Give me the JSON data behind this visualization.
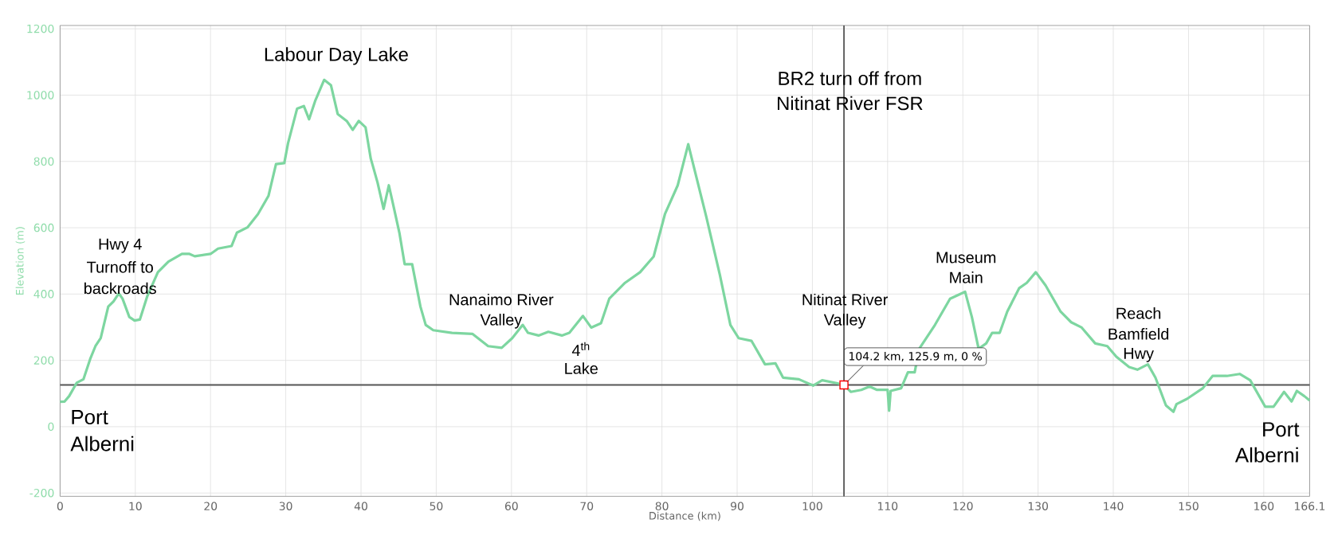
{
  "chart_data": {
    "type": "line",
    "xlabel": "Distance (km)",
    "ylabel": "Elevation (m)",
    "xlim": [
      0,
      166.1
    ],
    "ylim": [
      -210,
      1210
    ],
    "xticks": [
      0,
      10,
      20,
      30,
      40,
      50,
      60,
      70,
      80,
      90,
      100,
      110,
      120,
      130,
      140,
      150,
      160,
      166.1
    ],
    "yticks": [
      -200,
      0,
      200,
      400,
      600,
      800,
      1000,
      1200
    ],
    "grid": true,
    "marker": "none",
    "line_style": "solid",
    "color": "#7dd6a0",
    "x": [
      0,
      0.6,
      1.2,
      2.2,
      3.1,
      4.0,
      4.7,
      5.4,
      6.4,
      7.1,
      7.8,
      8.3,
      9.2,
      9.9,
      10.6,
      11.6,
      13.0,
      14.4,
      16.2,
      17.2,
      17.9,
      20.0,
      21.0,
      22.8,
      23.5,
      24.9,
      26.3,
      27.7,
      28.7,
      29.8,
      30.3,
      31.5,
      32.4,
      33.1,
      33.9,
      35.1,
      36.0,
      36.9,
      38.1,
      38.9,
      39.7,
      40.6,
      41.3,
      42.2,
      43.0,
      43.7,
      44.4,
      45.1,
      45.8,
      46.8,
      47.9,
      48.6,
      49.6,
      52.1,
      54.8,
      56.9,
      58.7,
      60.1,
      61.5,
      62.2,
      63.6,
      64.9,
      66.7,
      67.7,
      69.5,
      70.6,
      71.9,
      73.0,
      75.1,
      77.1,
      78.9,
      80.4,
      82.1,
      83.5,
      84.5,
      85.9,
      87.7,
      89.1,
      90.2,
      91.9,
      93.7,
      95.1,
      96.1,
      98.2,
      100.1,
      101.3,
      103.1,
      104.2,
      105.1,
      106.5,
      107.6,
      108.6,
      110.0,
      110.2,
      110.4,
      111.8,
      112.7,
      113.6,
      114.2,
      116.3,
      118.3,
      120.3,
      121.2,
      122.1,
      123.1,
      123.9,
      124.9,
      125.9,
      127.5,
      128.5,
      129.7,
      131.0,
      133.0,
      134.4,
      135.8,
      137.6,
      139.2,
      140.4,
      142.1,
      143.2,
      144.6,
      145.6,
      147.0,
      148.0,
      148.4,
      149.8,
      151.9,
      153.2,
      155.1,
      156.8,
      158.2,
      160.2,
      161.3,
      162.7,
      163.7,
      164.4,
      165.4,
      166.1
    ],
    "values": [
      75,
      76,
      92,
      132,
      143,
      204,
      243,
      267,
      362,
      378,
      402,
      386,
      331,
      320,
      323,
      394,
      466,
      498,
      521,
      521,
      514,
      521,
      537,
      545,
      585,
      601,
      641,
      696,
      792,
      795,
      855,
      959,
      967,
      927,
      982,
      1046,
      1030,
      943,
      922,
      895,
      922,
      903,
      808,
      736,
      657,
      728,
      657,
      585,
      490,
      490,
      362,
      307,
      291,
      283,
      280,
      243,
      238,
      267,
      307,
      283,
      275,
      286,
      275,
      283,
      334,
      299,
      312,
      386,
      434,
      466,
      513,
      641,
      728,
      852,
      760,
      633,
      458,
      307,
      267,
      259,
      188,
      191,
      148,
      143,
      124,
      140,
      132,
      126,
      105,
      111,
      121,
      111,
      111,
      48,
      108,
      116,
      164,
      164,
      235,
      307,
      386,
      407,
      331,
      235,
      251,
      283,
      283,
      347,
      418,
      434,
      466,
      426,
      347,
      315,
      299,
      251,
      243,
      211,
      180,
      172,
      188,
      148,
      64,
      45,
      68,
      84,
      116,
      153,
      153,
      159,
      140,
      60,
      60,
      105,
      76,
      108,
      92,
      79
    ],
    "ref_lines": [
      {
        "axis": "x",
        "value": 104.2,
        "color": "#555555"
      },
      {
        "axis": "y",
        "value": 125.9,
        "color": "#555555"
      }
    ],
    "annotations": [
      "Labour Day Lake",
      "Hwy 4",
      "Turnoff to",
      "backroads",
      "Port",
      "Alberni",
      "Nanaimo River",
      "Valley",
      "4$^{th}$",
      "Lake",
      "BR2 turn off from",
      "Nitinat River FSR",
      "Nitinat River",
      "Valley",
      "Museum",
      "Main",
      "Reach",
      "Bamfield",
      "Hwy",
      "Port",
      "Alberni",
      {
        "text": "104.2 km, 125.9 m, 0 %",
        "x": 104.2,
        "y": 125.9
      }
    ]
  }
}
